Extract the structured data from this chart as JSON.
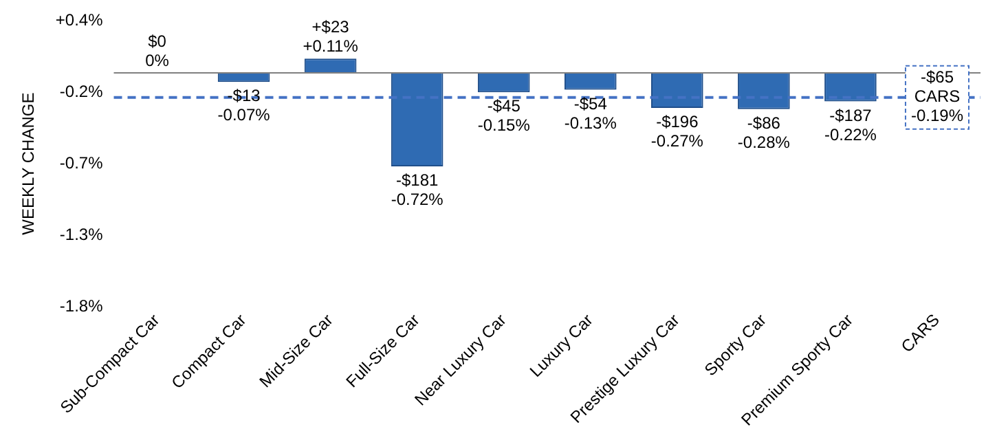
{
  "chart_data": {
    "type": "bar",
    "ylabel": "WEEKLY CHANGE",
    "categories": [
      "Sub-Compact Car",
      "Compact Car",
      "Mid-Size Car",
      "Full-Size Car",
      "Near Luxury Car",
      "Luxury Car",
      "Prestige Luxury Car",
      "Sporty Car",
      "Premium Sporty Car",
      "CARS"
    ],
    "values": [
      0,
      -0.07,
      0.11,
      -0.72,
      -0.15,
      -0.13,
      -0.27,
      -0.28,
      -0.22,
      null
    ],
    "value_labels": [
      "$0\n0%",
      "-$13\n-0.07%",
      "+$23\n+0.11%",
      "-$181\n-0.72%",
      "-$45\n-0.15%",
      "-$54\n-0.13%",
      "-$196\n-0.27%",
      "-$86\n-0.28%",
      "-$187\n-0.22%",
      null
    ],
    "color": "#2f6bb3",
    "ylim": [
      -1.8,
      0.4
    ],
    "yticks": [
      {
        "value": 0.4,
        "label": "+0.4%"
      },
      {
        "value": -0.15,
        "label": "-0.2%"
      },
      {
        "value": -0.7,
        "label": "-0.7%"
      },
      {
        "value": -1.25,
        "label": "-1.3%"
      },
      {
        "value": -1.8,
        "label": "-1.8%"
      }
    ],
    "grid": false,
    "legend": false,
    "ref_lines": [
      {
        "axis": "y",
        "value": 0,
        "color": "#808080",
        "line_style": "solid"
      },
      {
        "axis": "y",
        "value": -0.19,
        "label": "-$65\nCARS\n-0.19%",
        "color": "#4472c4",
        "line_style": "dashed"
      }
    ]
  }
}
